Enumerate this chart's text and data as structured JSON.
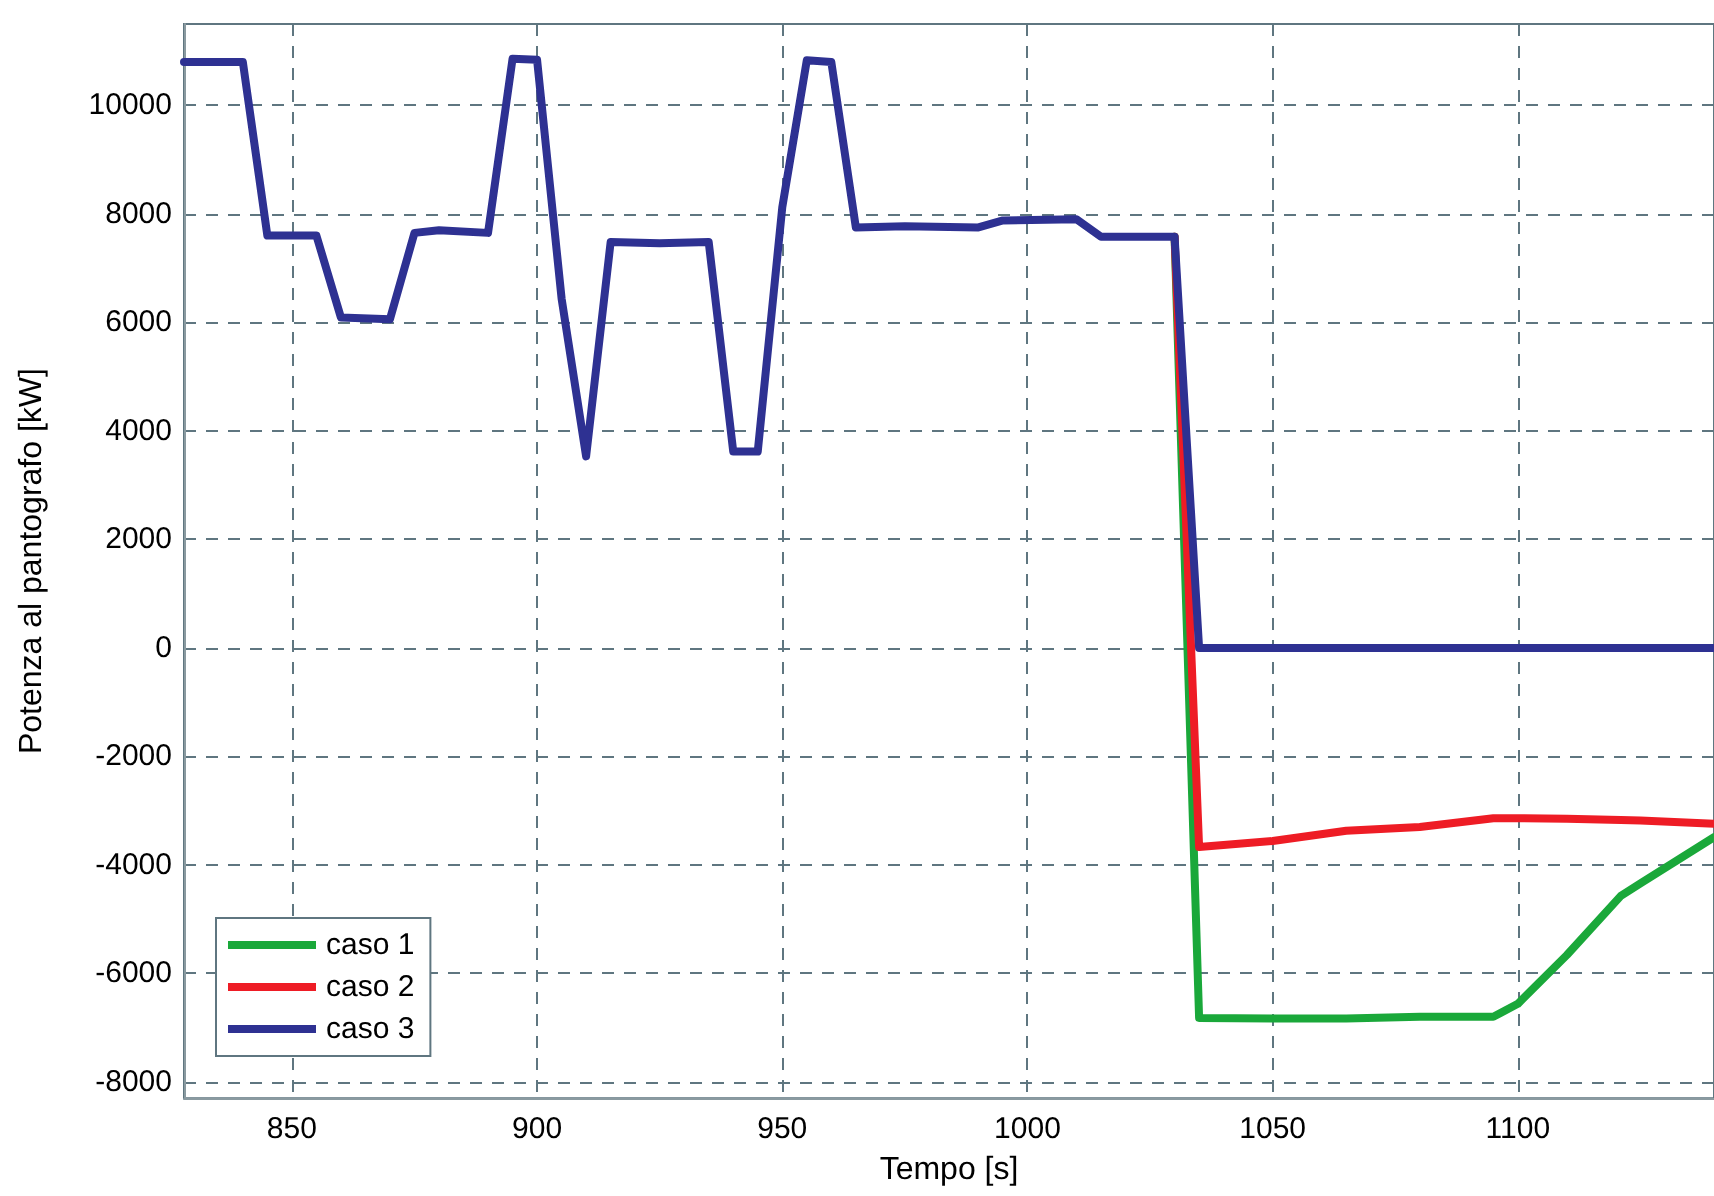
{
  "chart_data": {
    "type": "line",
    "xlabel": "Tempo [s]",
    "ylabel": "Potenza al pantografo [kW]",
    "x": [
      828,
      840,
      845,
      855,
      860,
      870,
      875,
      880,
      890,
      895,
      900,
      905,
      910,
      915,
      925,
      935,
      940,
      945,
      950,
      955,
      960,
      965,
      975,
      990,
      995,
      1010,
      1015,
      1030,
      1035,
      1050,
      1065,
      1080,
      1095,
      1100,
      1110,
      1121,
      1125,
      1140
    ],
    "series": [
      {
        "name": "caso 1",
        "color": "#1aa83a",
        "values": [
          null,
          null,
          null,
          null,
          null,
          null,
          null,
          null,
          null,
          null,
          null,
          null,
          null,
          null,
          null,
          null,
          null,
          null,
          null,
          null,
          null,
          null,
          null,
          null,
          null,
          null,
          null,
          7580,
          -6820,
          -6830,
          -6830,
          -6800,
          -6800,
          -6560,
          -5660,
          -4570,
          -4340,
          -3490
        ]
      },
      {
        "name": "caso 2",
        "color": "#ee1c25",
        "values": [
          null,
          null,
          null,
          null,
          null,
          null,
          null,
          null,
          null,
          null,
          null,
          null,
          null,
          null,
          null,
          null,
          null,
          null,
          null,
          null,
          null,
          null,
          null,
          null,
          null,
          null,
          null,
          7580,
          -3670,
          -3560,
          -3370,
          -3300,
          -3140,
          -3140,
          -3150,
          -3170,
          -3180,
          -3240
        ]
      },
      {
        "name": "caso 3",
        "color": "#2e3192",
        "values": [
          10800,
          10800,
          7600,
          7600,
          6090,
          6060,
          7650,
          7700,
          7650,
          10860,
          10840,
          6440,
          3530,
          7480,
          7460,
          7480,
          3620,
          3620,
          8120,
          10830,
          10800,
          7750,
          7770,
          7750,
          7880,
          7900,
          7580,
          7580,
          0,
          0,
          0,
          0,
          0,
          0,
          0,
          0,
          0,
          0
        ]
      }
    ],
    "xlim": [
      828,
      1140
    ],
    "xticks": [
      850,
      900,
      950,
      1000,
      1050,
      1100
    ],
    "ylim": [
      -8300,
      11500
    ],
    "yticks": [
      -8000,
      -6000,
      -4000,
      -2000,
      0,
      2000,
      4000,
      6000,
      8000,
      10000
    ],
    "grid": true,
    "legend": "bottom left",
    "marker": "none",
    "line_style": "solid"
  }
}
